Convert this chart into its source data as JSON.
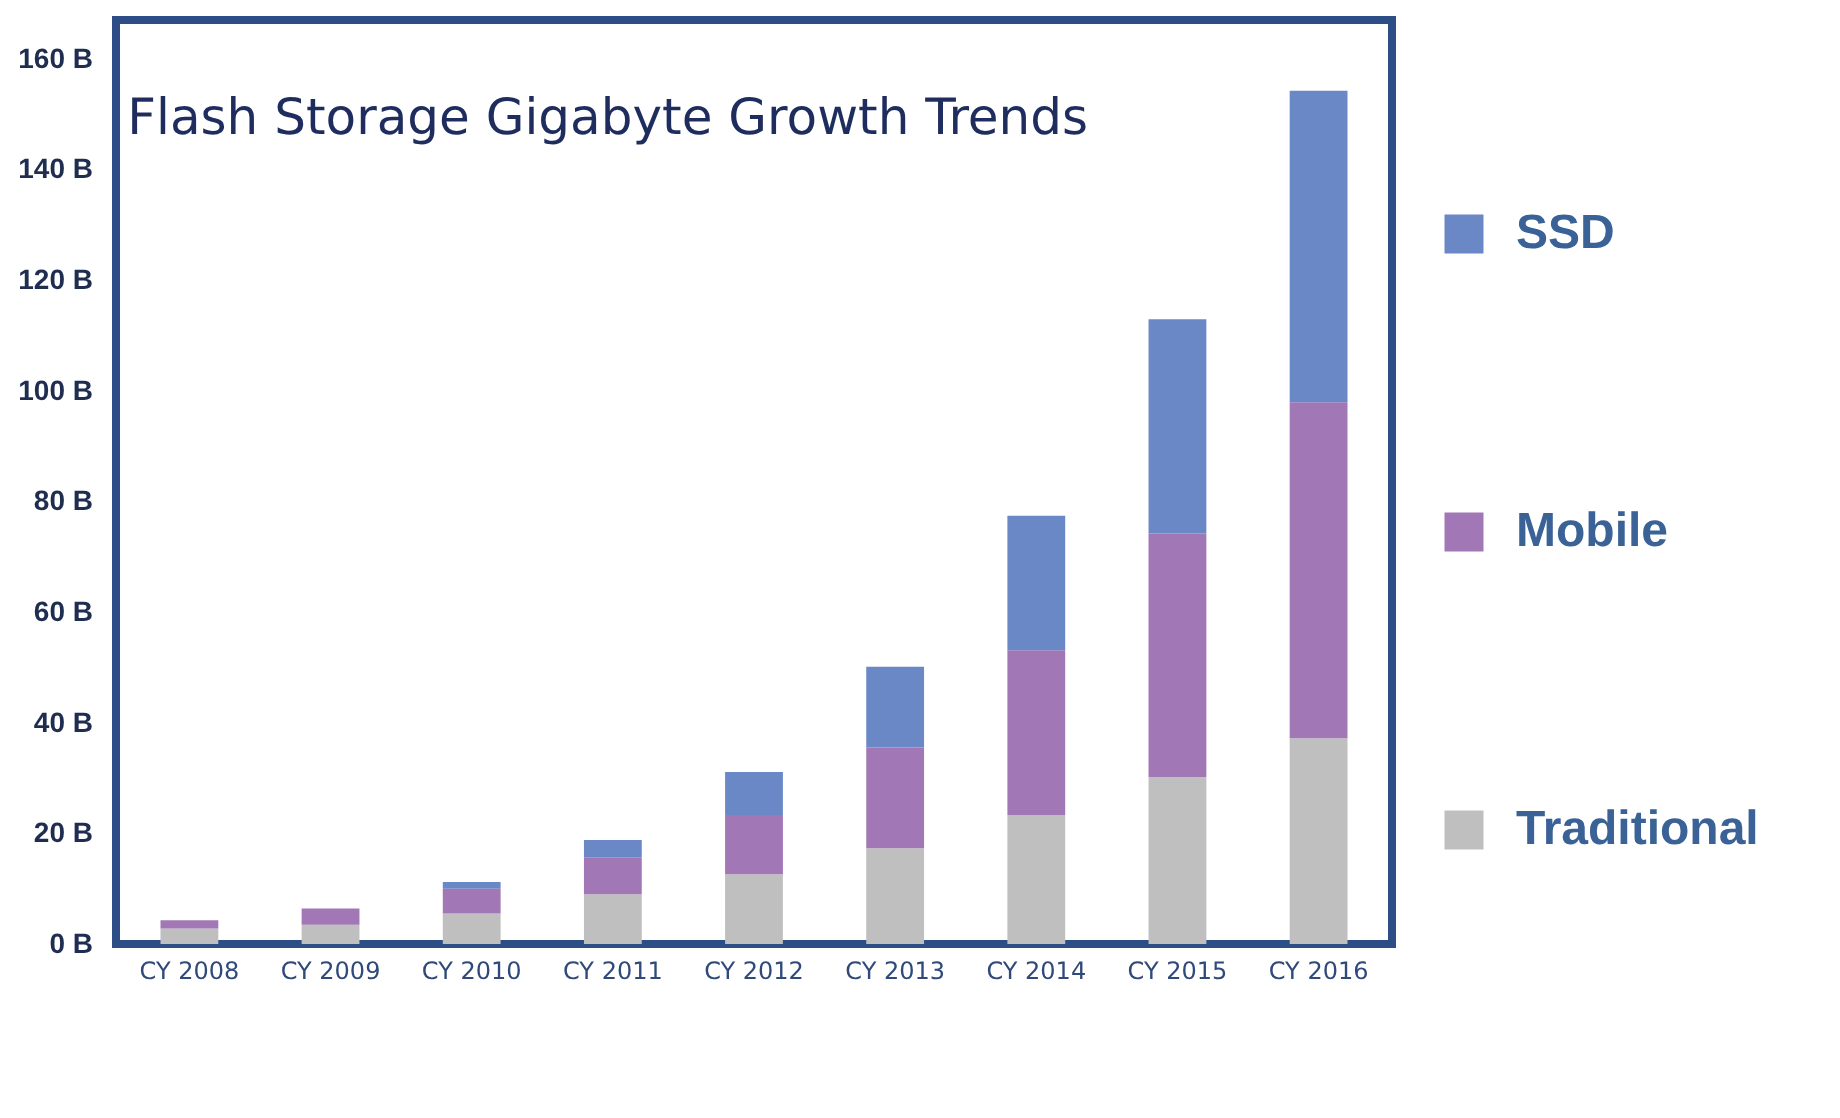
{
  "chart_data": {
    "type": "bar",
    "title": "Flash Storage Gigabyte Growth Trends",
    "stacked": true,
    "legend": "right",
    "grid": false,
    "categories": [
      "CY 2008",
      "CY 2009",
      "CY 2010",
      "CY 2011",
      "CY 2012",
      "CY 2013",
      "CY 2014",
      "CY 2015",
      "CY 2016"
    ],
    "series": [
      {
        "name": "Traditional",
        "color": "#bfbfbf",
        "values": [
          2.8,
          3.5,
          5.5,
          9,
          12.6,
          17.3,
          23.3,
          30.2,
          37.2
        ]
      },
      {
        "name": "Mobile",
        "color": "#a277b5",
        "values": [
          1.5,
          2.9,
          4.5,
          6.7,
          10.7,
          18.2,
          29.8,
          44,
          60.7
        ]
      },
      {
        "name": "SSD",
        "color": "#6a87c6",
        "values": [
          0,
          0,
          1.2,
          3.1,
          7.8,
          14.6,
          24.3,
          38.7,
          56.3
        ]
      }
    ],
    "ylim": [
      0,
      167
    ],
    "yticks": [
      {
        "value": 0,
        "label": "0 B"
      },
      {
        "value": 20,
        "label": "20 B"
      },
      {
        "value": 40,
        "label": "40 B"
      },
      {
        "value": 60,
        "label": "60 B"
      },
      {
        "value": 80,
        "label": "80 B"
      },
      {
        "value": 100,
        "label": "100 B"
      },
      {
        "value": 120,
        "label": "120 B"
      },
      {
        "value": 140,
        "label": "140 B"
      },
      {
        "value": 160,
        "label": "160 B"
      }
    ]
  }
}
